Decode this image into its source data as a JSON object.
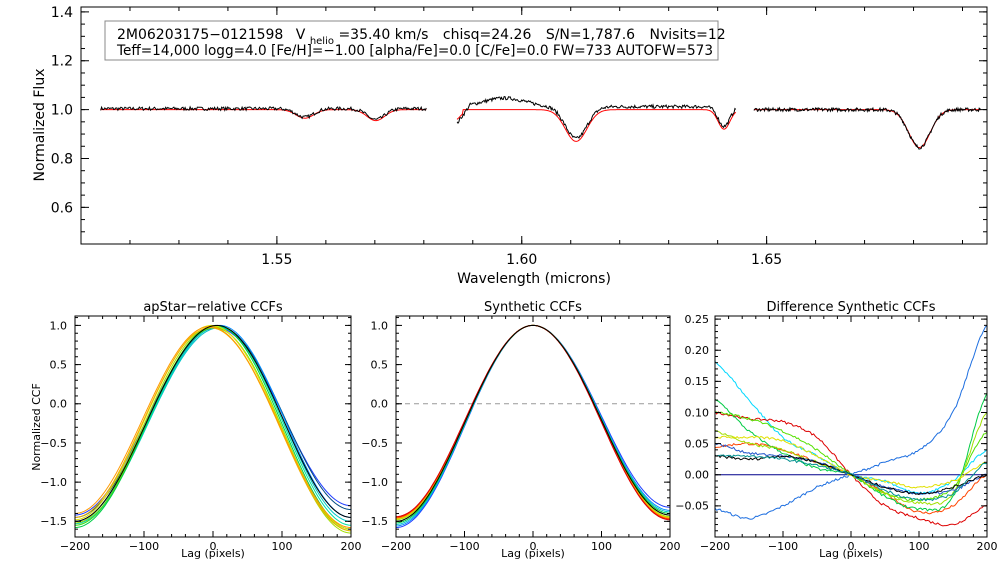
{
  "chart_data": [
    {
      "type": "line",
      "title": "",
      "info_line1": {
        "star": "2M06203175−0121598",
        "vhelio_symbol": "V",
        "vhelio_sub": "helio",
        "vhelio_value": "=35.40 km/s",
        "chisq": "chisq=24.26",
        "snr": "S/N=1,787.6",
        "nvisits": "Nvisits=12"
      },
      "info_line2": "Teff=14,000 logg=4.0 [Fe/H]=−1.00 [alpha/Fe]=0.0 [C/Fe]=0.0 FW=733 AUTOFW=573",
      "xlabel": "Wavelength (microns)",
      "ylabel": "Normalized Flux",
      "xlim": [
        1.51,
        1.695
      ],
      "ylim": [
        0.45,
        1.42
      ],
      "xticks": [
        1.55,
        1.6,
        1.65
      ],
      "xtick_labels": [
        "1.55",
        "1.60",
        "1.65"
      ],
      "yticks": [
        0.6,
        0.8,
        1.0,
        1.2,
        1.4
      ],
      "ytick_labels": [
        "0.6",
        "0.8",
        "1.0",
        "1.2",
        "1.4"
      ],
      "chips": [
        [
          1.514,
          1.5805
        ],
        [
          1.5868,
          1.6437
        ],
        [
          1.6474,
          1.6937
        ]
      ],
      "series": [
        {
          "name": "observed spectrum",
          "color": "#000000"
        },
        {
          "name": "model spectrum",
          "color": "#ff0000"
        }
      ],
      "absorption_lines": [
        {
          "center": 1.5557,
          "depth": 0.035,
          "width": 0.0018
        },
        {
          "center": 1.5702,
          "depth": 0.045,
          "width": 0.0018
        },
        {
          "center": 1.6111,
          "depth": 0.13,
          "width": 0.0022
        },
        {
          "center": 1.6413,
          "depth": 0.08,
          "width": 0.0012
        },
        {
          "center": 1.6812,
          "depth": 0.155,
          "width": 0.0022
        }
      ]
    },
    {
      "type": "line",
      "title": "apStar−relative CCFs",
      "xlabel": "Lag (pixels)",
      "ylabel": "Normalized CCF",
      "xlim": [
        -200,
        200
      ],
      "ylim": [
        -1.7,
        1.12
      ],
      "xticks": [
        -200,
        -100,
        0,
        100,
        200
      ],
      "xtick_labels": [
        "−200",
        "−100",
        "0",
        "100",
        "200"
      ],
      "yticks": [
        1.0,
        0.5,
        0.0,
        -0.5,
        -1.0,
        -1.5
      ],
      "ytick_labels": [
        "1.0",
        "0.5",
        "0.0",
        "−0.5",
        "−1.0",
        "−1.5"
      ],
      "series_colors": [
        "#1e3cff",
        "#004a80",
        "#008cff",
        "#00c8c8",
        "#00e0a0",
        "#00cc44",
        "#55e000",
        "#a0e000",
        "#e0e000",
        "#f0b000",
        "#ff9900",
        "#000000"
      ],
      "peak_lags": [
        5,
        8,
        10,
        9,
        7,
        4,
        2,
        0,
        -2,
        -4,
        -5,
        6
      ],
      "ends_at_minus200": [
        -1.42,
        -1.45,
        -1.5,
        -1.53,
        -1.55,
        -1.58,
        -1.55,
        -1.52,
        -1.48,
        -1.45,
        -1.4,
        -1.5
      ],
      "ends_at_plus200": [
        -1.3,
        -1.35,
        -1.45,
        -1.5,
        -1.55,
        -1.6,
        -1.62,
        -1.65,
        -1.6,
        -1.62,
        -1.58,
        -1.45
      ]
    },
    {
      "type": "line",
      "title": "Synthetic CCFs",
      "xlabel": "Lag (pixels)",
      "ylabel": "",
      "xlim": [
        -200,
        200
      ],
      "ylim": [
        -1.7,
        1.12
      ],
      "xticks": [
        -200,
        -100,
        0,
        100,
        200
      ],
      "xtick_labels": [
        "−200",
        "−100",
        "0",
        "100",
        "200"
      ],
      "yticks": [
        1.0,
        0.5,
        0.0,
        -0.5,
        -1.0,
        -1.5
      ],
      "ytick_labels": [
        "1.0",
        "0.5",
        "0.0",
        "−0.5",
        "−1.0",
        "−1.5"
      ],
      "zero_line": 0.0,
      "series_colors": [
        "#1e3cff",
        "#008cff",
        "#00c8c8",
        "#00cc44",
        "#55e000",
        "#a0e000",
        "#e0e000",
        "#ff9900",
        "#ff3300",
        "#dd0000",
        "#000000"
      ],
      "ends_at_minus200": [
        -1.58,
        -1.56,
        -1.54,
        -1.52,
        -1.5,
        -1.48,
        -1.47,
        -1.46,
        -1.45,
        -1.44,
        -1.5
      ],
      "ends_at_plus200": [
        -1.32,
        -1.36,
        -1.38,
        -1.4,
        -1.42,
        -1.44,
        -1.45,
        -1.46,
        -1.47,
        -1.48,
        -1.42
      ]
    },
    {
      "type": "line",
      "title": "Difference Synthetic CCFs",
      "xlabel": "Lag (pixels)",
      "ylabel": "",
      "xlim": [
        -200,
        200
      ],
      "ylim": [
        -0.1,
        0.255
      ],
      "xticks": [
        -200,
        -100,
        0,
        100,
        200
      ],
      "xtick_labels": [
        "−200",
        "−100",
        "0",
        "100",
        "200"
      ],
      "yticks": [
        0.25,
        0.2,
        0.15,
        0.1,
        0.05,
        0.0,
        -0.05
      ],
      "ytick_labels": [
        "0.25",
        "0.20",
        "0.15",
        "0.10",
        "0.05",
        "0.00",
        "−0.05"
      ],
      "x_samples": [
        -200,
        -150,
        -100,
        -50,
        0,
        50,
        100,
        150,
        200
      ],
      "series": [
        {
          "name": "zero",
          "color": "#00008b",
          "values": [
            0.0,
            0.0,
            0.0,
            0.0,
            0.0,
            0.0,
            0.0,
            0.0,
            0.0
          ]
        },
        {
          "name": "s1",
          "color": "#1e6fe0",
          "values": [
            -0.055,
            -0.07,
            -0.05,
            -0.02,
            0.0,
            0.02,
            0.04,
            0.1,
            0.24
          ]
        },
        {
          "name": "s2",
          "color": "#00d8ff",
          "values": [
            0.18,
            0.12,
            0.06,
            0.03,
            0.0,
            -0.01,
            -0.03,
            -0.01,
            0.04
          ]
        },
        {
          "name": "s3",
          "color": "#dd0000",
          "values": [
            0.1,
            0.09,
            0.085,
            0.06,
            0.0,
            -0.05,
            -0.07,
            -0.08,
            -0.05
          ]
        },
        {
          "name": "s4",
          "color": "#ff4400",
          "values": [
            0.045,
            0.05,
            0.04,
            0.02,
            0.0,
            -0.03,
            -0.06,
            -0.05,
            0.0
          ]
        },
        {
          "name": "s5",
          "color": "#00cc44",
          "values": [
            0.12,
            0.07,
            0.035,
            0.01,
            0.0,
            -0.035,
            -0.055,
            -0.035,
            0.13
          ]
        },
        {
          "name": "s6",
          "color": "#55e000",
          "values": [
            0.1,
            0.09,
            0.07,
            0.04,
            0.0,
            -0.03,
            -0.04,
            -0.02,
            0.07
          ]
        },
        {
          "name": "s7",
          "color": "#a0e000",
          "values": [
            0.07,
            0.05,
            0.04,
            0.02,
            0.0,
            -0.03,
            -0.045,
            -0.03,
            0.1
          ]
        },
        {
          "name": "s8",
          "color": "#e0e000",
          "values": [
            0.06,
            0.06,
            0.055,
            0.03,
            0.0,
            -0.01,
            -0.02,
            -0.01,
            0.02
          ]
        },
        {
          "name": "s9",
          "color": "#2255cc",
          "values": [
            0.05,
            0.035,
            0.03,
            0.02,
            0.0,
            -0.02,
            -0.03,
            -0.025,
            0.0
          ]
        },
        {
          "name": "s10",
          "color": "#000000",
          "values": [
            0.03,
            0.025,
            0.03,
            0.02,
            0.0,
            -0.02,
            -0.03,
            -0.02,
            0.0
          ]
        },
        {
          "name": "s11",
          "color": "#009090",
          "values": [
            0.03,
            0.03,
            0.025,
            0.015,
            0.0,
            -0.025,
            -0.04,
            -0.03,
            0.02
          ]
        }
      ]
    }
  ]
}
